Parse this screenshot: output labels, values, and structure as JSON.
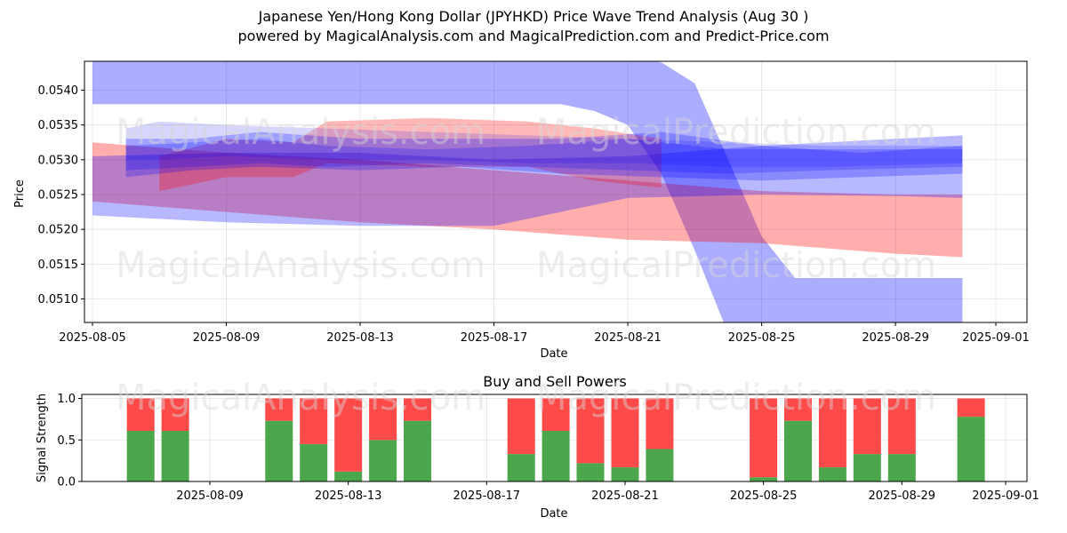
{
  "header": {
    "title": "Japanese Yen/Hong Kong Dollar (JPYHKD) Price Wave Trend Analysis (Aug 30 )",
    "subtitle": "powered by MagicalAnalysis.com and MagicalPrediction.com and Predict-Price.com"
  },
  "watermarks": [
    "MagicalAnalysis.com",
    "MagicalPrediction.com"
  ],
  "colors": {
    "blue_band": "#0000ff",
    "red_band": "#ff0000",
    "buy": "#4ca64c",
    "sell": "#ff4a4a"
  },
  "chart_data": [
    {
      "type": "area",
      "title": "",
      "xlabel": "Date",
      "ylabel": "Price",
      "x_ticks": [
        "2025-08-05",
        "2025-08-09",
        "2025-08-13",
        "2025-08-17",
        "2025-08-21",
        "2025-08-25",
        "2025-08-29",
        "2025-09-01"
      ],
      "y_ticks": [
        "0.0540",
        "0.0535",
        "0.0530",
        "0.0525",
        "0.0520",
        "0.0515",
        "0.0510"
      ],
      "ylim": [
        0.05067,
        0.05443
      ],
      "xlim": [
        "2025-08-04",
        "2025-09-01"
      ],
      "grid": true,
      "series": [
        {
          "color": "blue",
          "opacity": 0.32,
          "x": [
            "2025-08-05",
            "2025-08-09",
            "2025-08-13",
            "2025-08-17",
            "2025-08-19",
            "2025-08-20",
            "2025-08-21",
            "2025-08-22",
            "2025-08-23",
            "2025-08-24",
            "2025-08-25",
            "2025-08-26",
            "2025-08-30",
            "2025-08-31"
          ],
          "upper": [
            0.0545,
            0.0545,
            0.0545,
            0.0545,
            0.0545,
            0.0545,
            0.0545,
            0.0544,
            0.0541,
            0.053,
            0.0519,
            0.0513,
            0.0513,
            0.0513
          ],
          "lower": [
            0.0538,
            0.0538,
            0.0538,
            0.0538,
            0.0538,
            0.0537,
            0.0535,
            0.0528,
            0.0517,
            0.0505,
            0.0505,
            0.0505,
            0.0505,
            0.0505
          ]
        },
        {
          "color": "red",
          "opacity": 0.32,
          "x": [
            "2025-08-05",
            "2025-08-09",
            "2025-08-13",
            "2025-08-17",
            "2025-08-21",
            "2025-08-25",
            "2025-08-29",
            "2025-08-31"
          ],
          "upper": [
            0.05325,
            0.0531,
            0.053,
            0.05285,
            0.0527,
            0.05255,
            0.0525,
            0.0525
          ],
          "lower": [
            0.0524,
            0.05225,
            0.0521,
            0.052,
            0.05185,
            0.0518,
            0.05165,
            0.0516
          ]
        },
        {
          "color": "blue",
          "opacity": 0.28,
          "x": [
            "2025-08-05",
            "2025-08-09",
            "2025-08-13",
            "2025-08-17",
            "2025-08-21",
            "2025-08-25",
            "2025-08-29",
            "2025-08-31"
          ],
          "upper": [
            0.05305,
            0.0531,
            0.0531,
            0.053,
            0.05305,
            0.0532,
            0.0533,
            0.05335
          ],
          "lower": [
            0.0522,
            0.0521,
            0.05205,
            0.05205,
            0.05245,
            0.0525,
            0.05248,
            0.05245
          ]
        },
        {
          "color": "red",
          "opacity": 0.28,
          "x": [
            "2025-08-07",
            "2025-08-09",
            "2025-08-11",
            "2025-08-12",
            "2025-08-15",
            "2025-08-18",
            "2025-08-20",
            "2025-08-22"
          ],
          "upper": [
            0.05305,
            0.0533,
            0.05325,
            0.05355,
            0.0536,
            0.05355,
            0.05345,
            0.0533
          ],
          "lower": [
            0.05255,
            0.05275,
            0.05275,
            0.05295,
            0.0529,
            0.0529,
            0.0527,
            0.0526
          ]
        },
        {
          "color": "blue",
          "opacity": 0.25,
          "x": [
            "2025-08-06",
            "2025-08-08",
            "2025-08-10",
            "2025-08-13",
            "2025-08-16",
            "2025-08-19",
            "2025-08-22",
            "2025-08-25",
            "2025-08-28",
            "2025-08-31"
          ],
          "upper": [
            0.0533,
            0.0533,
            0.0534,
            0.0533,
            0.0533,
            0.0533,
            0.0534,
            0.0532,
            0.0531,
            0.0532
          ],
          "lower": [
            0.05275,
            0.05285,
            0.0529,
            0.05285,
            0.0529,
            0.0528,
            0.05275,
            0.0527,
            0.05275,
            0.0528
          ]
        },
        {
          "color": "blue",
          "opacity": 0.22,
          "x": [
            "2025-08-06",
            "2025-08-08",
            "2025-08-10",
            "2025-08-12",
            "2025-08-15",
            "2025-08-18",
            "2025-08-21",
            "2025-08-24",
            "2025-08-27",
            "2025-08-31"
          ],
          "upper": [
            0.0532,
            0.05325,
            0.0533,
            0.0532,
            0.05315,
            0.0532,
            0.0533,
            0.05315,
            0.05315,
            0.05315
          ],
          "lower": [
            0.05285,
            0.0529,
            0.05295,
            0.0529,
            0.05295,
            0.0529,
            0.05285,
            0.0528,
            0.05285,
            0.0529
          ]
        },
        {
          "color": "blue",
          "opacity": 0.16,
          "x": [
            "2025-08-06",
            "2025-08-07",
            "2025-08-09",
            "2025-08-12",
            "2025-08-15",
            "2025-08-18",
            "2025-08-21",
            "2025-08-24",
            "2025-08-27",
            "2025-08-31"
          ],
          "upper": [
            0.05345,
            0.05355,
            0.0535,
            0.05345,
            0.0534,
            0.05335,
            0.0533,
            0.05325,
            0.0532,
            0.0532
          ],
          "lower": [
            0.053,
            0.053,
            0.05305,
            0.053,
            0.053,
            0.05295,
            0.05295,
            0.0529,
            0.0529,
            0.05295
          ]
        }
      ]
    },
    {
      "type": "bar",
      "title": "Buy and Sell Powers",
      "xlabel": "Date",
      "ylabel": "Signal Strength",
      "ylim": [
        0,
        1.05
      ],
      "y_ticks": [
        "0.0",
        "0.5",
        "1.0"
      ],
      "x_ticks": [
        "2025-08-09",
        "2025-08-13",
        "2025-08-17",
        "2025-08-21",
        "2025-08-25",
        "2025-08-29",
        "2025-09-01"
      ],
      "grid": true,
      "categories": [
        "2025-08-07",
        "2025-08-08",
        "2025-08-11",
        "2025-08-12",
        "2025-08-13",
        "2025-08-14",
        "2025-08-15",
        "2025-08-18",
        "2025-08-19",
        "2025-08-20",
        "2025-08-21",
        "2025-08-22",
        "2025-08-25",
        "2025-08-26",
        "2025-08-27",
        "2025-08-28",
        "2025-08-29",
        "2025-08-31"
      ],
      "series": [
        {
          "name": "Buy",
          "values": [
            0.61,
            0.61,
            0.73,
            0.45,
            0.12,
            0.5,
            0.73,
            0.33,
            0.61,
            0.22,
            0.17,
            0.39,
            0.05,
            0.73,
            0.17,
            0.33,
            0.33,
            0.78
          ]
        },
        {
          "name": "Sell",
          "values": [
            0.39,
            0.39,
            0.27,
            0.55,
            0.88,
            0.5,
            0.27,
            0.67,
            0.39,
            0.78,
            0.83,
            0.61,
            0.95,
            0.27,
            0.83,
            0.67,
            0.67,
            0.22
          ]
        }
      ]
    }
  ]
}
